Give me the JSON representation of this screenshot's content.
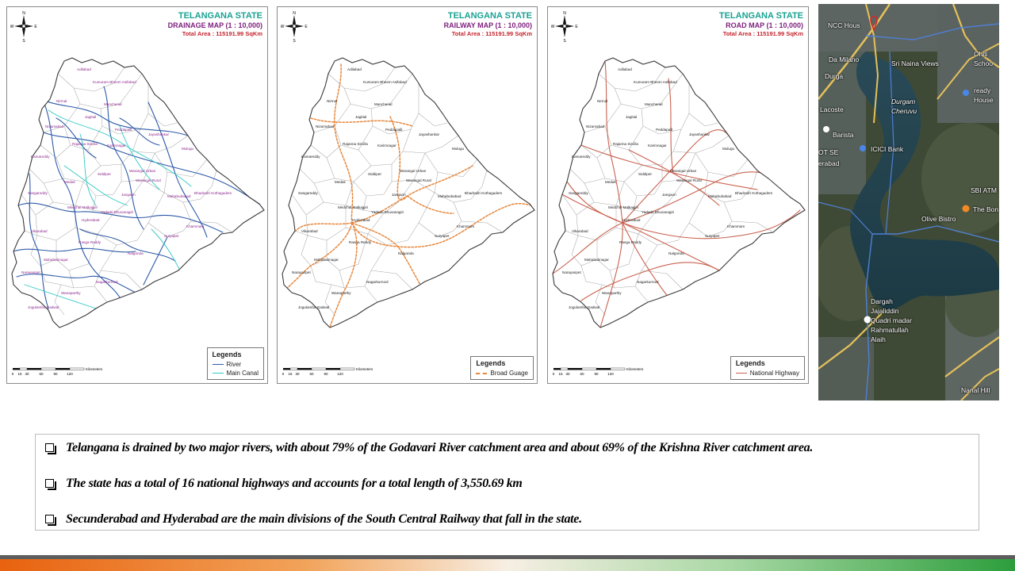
{
  "common": {
    "state": "TELANGANA STATE",
    "total_area": "Total Area : 115191.99 SqKm",
    "compass": {
      "n": "N",
      "e": "E",
      "s": "S",
      "w": "W"
    },
    "scale": {
      "ticks": [
        "0",
        "15",
        "30",
        "60",
        "90",
        "120"
      ],
      "unit": "Kilometers"
    }
  },
  "maps": {
    "drainage": {
      "title": "DRAINAGE MAP (1 : 10,000)",
      "legend_title": "Legends",
      "legend": [
        {
          "label": "River",
          "color": "#2e5aa8"
        },
        {
          "label": "Main Canal",
          "color": "#2fc9c4"
        }
      ],
      "district_label_color": "#8e2a8e"
    },
    "railway": {
      "title": "RAILWAY MAP (1 : 10,000)",
      "legend_title": "Legends",
      "legend": [
        {
          "label": "Broad Guage",
          "color": "#e6873c"
        }
      ],
      "district_label_color": "#222222"
    },
    "road": {
      "title": "ROAD MAP (1 : 10,000)",
      "legend_title": "Legends",
      "legend": [
        {
          "label": "National Highway",
          "color": "#c9624f"
        }
      ],
      "district_label_color": "#222222"
    }
  },
  "districts": {
    "adilabad": "Adilabad",
    "asifabad": "Kumuram Bheem Asifabad",
    "nirmal": "Nirmal",
    "mancherial": "Mancherial",
    "nizamabad": "Nizamabad",
    "jagitial": "Jagitial",
    "peddapalli": "Peddapalli",
    "jayashankar": "Jayashankar",
    "rajanna": "Rajanna Sircilla",
    "karimnagar": "Karimnagar",
    "mulugu": "Mulugu",
    "kamareddy": "Kamareddy",
    "siddipet": "Siddipet",
    "warangal_urban": "Warangal Urban",
    "warangal_rural": "Warangal Rural",
    "medak": "Medak",
    "sangareddy": "Sangareddy",
    "jangaon": "Jangaon",
    "mahabubabad": "Mahabubabad",
    "kothagudem": "Bhadradri Kothagudem",
    "medchal": "Medchal Malkajgiri",
    "yadadri": "Yadadri Bhuvanagiri",
    "hyderabad": "Hyderabad",
    "vikarabad": "Vikarabad",
    "ranga_reddy": "Ranga Reddy",
    "khammam": "Khammam",
    "suryapet": "Suryapet",
    "nalgonda": "Nalgonda",
    "mahabubnagar": "Mahabubnagar",
    "narayanpet": "Narayanpet",
    "nagarkurnool": "Nagarkurnool",
    "wanaparthy": "Wanaparthy",
    "gadwal": "Jogulamba Gadwal"
  },
  "photo": {
    "labels": {
      "ncc": "NCC Hous",
      "da_milano": "Da Milano",
      "durga": "Durga",
      "sri_naina": "Sri Naina Views",
      "durgam1": "Durgam",
      "durgam2": "Cheruvu",
      "lacoste": "Lacoste",
      "barista": "Barista",
      "icici": "ICICI Bank",
      "ot_sez": "OT SE",
      "erabad": "erabad",
      "sbi": "SBI ATM",
      "the_bon": "The Bon",
      "olive": "Olive Bistro",
      "dargah1": "Dargah",
      "dargah2": "Jajaliddin",
      "dargah3": "Quadri madar",
      "dargah4": "Rahmatullah",
      "dargah5": "Alaih",
      "nanal": "Nanal Hill",
      "ready": "ready",
      "house": "House",
      "schoo": "Schoo",
      "ohiti": "Ohiti"
    }
  },
  "bullets": [
    "Telangana is drained by two major rivers,  with about 79% of the Godavari River catchment area and about 69% of the Krishna River  catchment area.",
    "The state has a total of 16 national highways and accounts for a total length of 3,550.69 km",
    "Secunderabad and Hyderabad are the main divisions of the South Central Railway that fall in the state."
  ],
  "colors": {
    "state_teal": "#1aa393",
    "title_purple": "#7c1e7c",
    "area_red": "#c4262e",
    "footer_orange": "#e8620f",
    "footer_green": "#2c9e3c"
  }
}
